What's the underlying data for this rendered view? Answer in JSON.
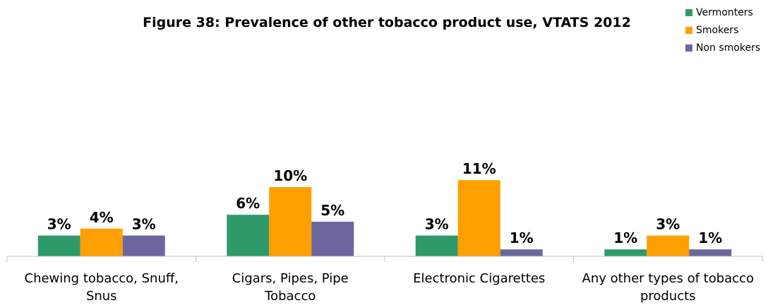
{
  "chart_data": {
    "type": "bar",
    "title": "Figure 38: Prevalence of other tobacco product use, VTATS 2012",
    "categories": [
      [
        "Chewing tobacco, Snuff,",
        "Snus"
      ],
      [
        "Cigars, Pipes, Pipe",
        "Tobacco"
      ],
      [
        "Electronic Cigarettes"
      ],
      [
        "Any other types of tobacco",
        "products"
      ]
    ],
    "series": [
      {
        "name": "Vermonters",
        "color": "#2e9a6a",
        "values": [
          3,
          6,
          3,
          1
        ],
        "labels": [
          "3%",
          "6%",
          "3%",
          "1%"
        ]
      },
      {
        "name": "Smokers",
        "color": "#ff9f00",
        "values": [
          4,
          10,
          11,
          3
        ],
        "labels": [
          "4%",
          "10%",
          "11%",
          "3%"
        ]
      },
      {
        "name": "Non smokers",
        "color": "#6b679e",
        "values": [
          3,
          5,
          1,
          1
        ],
        "labels": [
          "3%",
          "5%",
          "1%",
          "1%"
        ]
      }
    ],
    "grid": false,
    "legend": "top-right"
  }
}
